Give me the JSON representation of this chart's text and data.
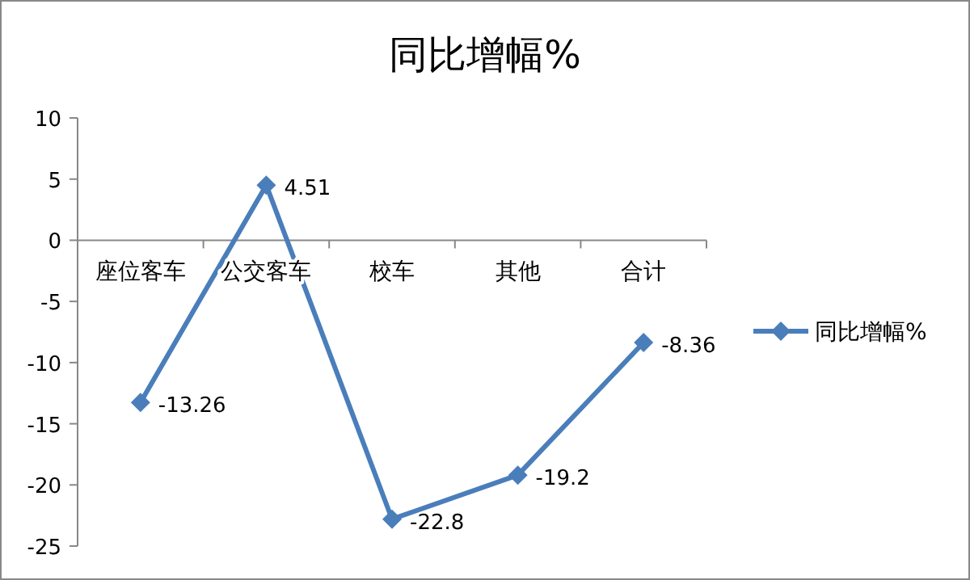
{
  "chart_data": {
    "type": "line",
    "title": "同比增幅%",
    "categories": [
      "座位客车",
      "公交客车",
      "校车",
      "其他",
      "合计"
    ],
    "series": [
      {
        "name": "同比增幅%",
        "color": "#4a7ebb",
        "values": [
          -13.26,
          4.51,
          -22.8,
          -19.2,
          -8.36
        ]
      }
    ],
    "ylim": [
      -25,
      10
    ],
    "yticks": [
      -25,
      -20,
      -15,
      -10,
      -5,
      0,
      5,
      10
    ],
    "marker": "diamond",
    "line_style": "solid",
    "data_labels": true,
    "legend": "right",
    "grid": false
  }
}
